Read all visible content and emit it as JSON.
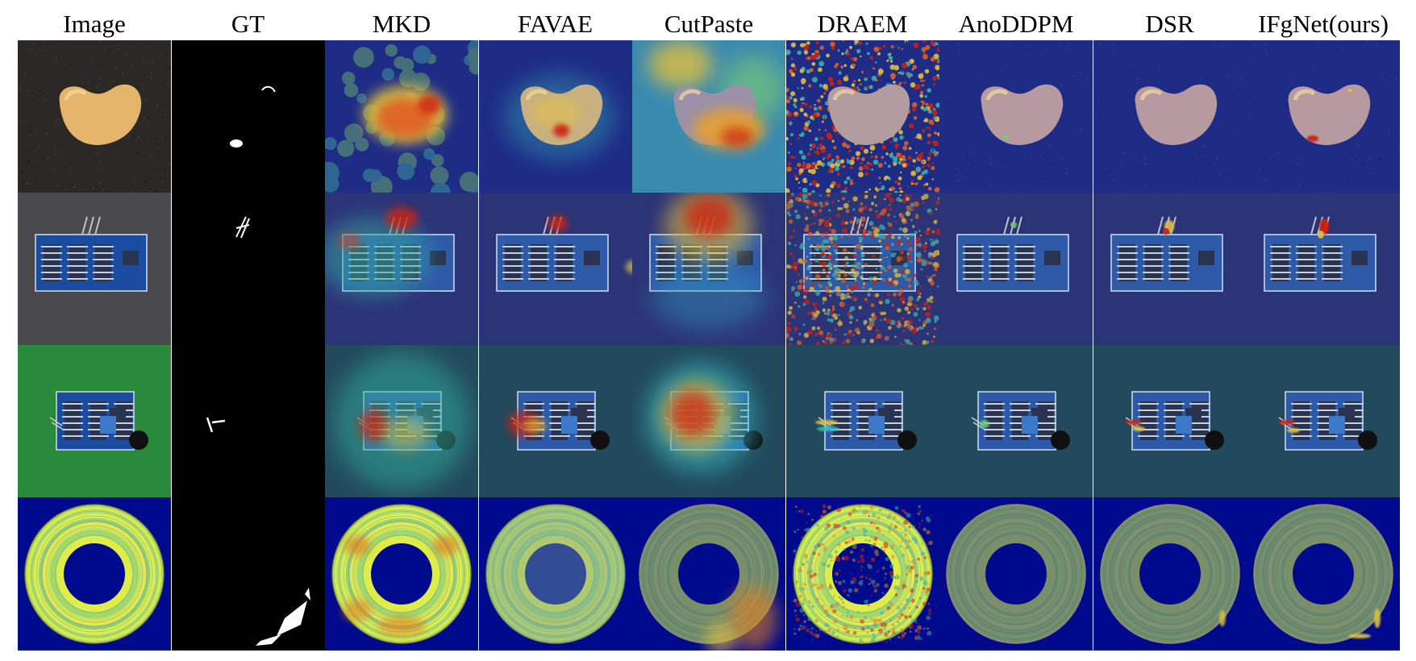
{
  "figure": {
    "columns": [
      {
        "key": "image",
        "label": "Image"
      },
      {
        "key": "gt",
        "label": "GT"
      },
      {
        "key": "mkd",
        "label": "MKD"
      },
      {
        "key": "favae",
        "label": "FAVAE"
      },
      {
        "key": "cutpaste",
        "label": "CutPaste"
      },
      {
        "key": "draem",
        "label": "DRAEM"
      },
      {
        "key": "anoddpm",
        "label": "AnoDDPM"
      },
      {
        "key": "dsr",
        "label": "DSR"
      },
      {
        "key": "ifgnet",
        "label": "IFgNet(ours)"
      }
    ],
    "rows": [
      {
        "key": "bean",
        "kind": "object"
      },
      {
        "key": "ultrasonic-pcb",
        "kind": "pcb-gray"
      },
      {
        "key": "infrared-pcb",
        "kind": "pcb-green"
      },
      {
        "key": "ring",
        "kind": "ring"
      }
    ],
    "colors": {
      "heat_low": "#1b2a8c",
      "heat_mid": "#25c0c0",
      "heat_high": "#d02010",
      "gt_mask_background": "#000000",
      "gt_mask_foreground": "#ffffff"
    }
  }
}
